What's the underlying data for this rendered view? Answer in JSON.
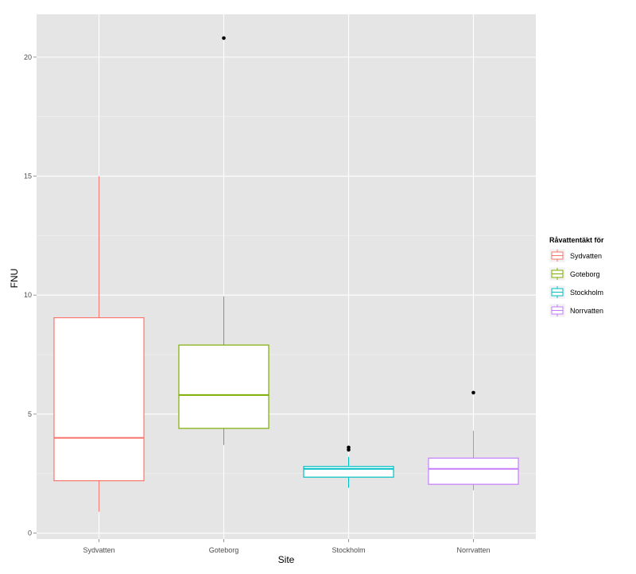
{
  "chart_data": {
    "type": "boxplot",
    "xlabel": "Site",
    "ylabel": "FNU",
    "categories": [
      "Sydvatten",
      "Goteborg",
      "Stockholm",
      "Norrvatten"
    ],
    "ylim": [
      -0.25,
      21.8
    ],
    "yticks": [
      0,
      5,
      10,
      15,
      20
    ],
    "grid": true,
    "legend": {
      "title": "Råvattentäkt för",
      "placement": "right",
      "entries": [
        "Sydvatten",
        "Goteborg",
        "Stockholm",
        "Norrvatten"
      ]
    },
    "series": [
      {
        "name": "Sydvatten",
        "color": "#F8766D",
        "min": 0.9,
        "q1": 2.2,
        "median": 4.0,
        "q3": 9.05,
        "max": 15.0,
        "outliers": []
      },
      {
        "name": "Goteborg",
        "color": "#7CAE00",
        "min": 3.7,
        "q1": 4.4,
        "median": 5.8,
        "q3": 7.9,
        "max": 9.95,
        "outliers": [
          20.8
        ]
      },
      {
        "name": "Stockholm",
        "color": "#00BFC4",
        "min": 1.9,
        "q1": 2.35,
        "median": 2.7,
        "q3": 2.8,
        "max": 3.2,
        "outliers": [
          3.5,
          3.6
        ]
      },
      {
        "name": "Norrvatten",
        "color": "#C77CFF",
        "min": 1.8,
        "q1": 2.05,
        "median": 2.7,
        "q3": 3.15,
        "max": 4.3,
        "outliers": [
          5.9
        ]
      }
    ],
    "colors": {
      "panel": "#E5E5E5",
      "grid_major": "#FFFFFF",
      "grid_minor": "#F2F2F2",
      "tick_text": "#4D4D4D",
      "box_fill": "#FFFFFF",
      "outlier": "#000000"
    }
  }
}
